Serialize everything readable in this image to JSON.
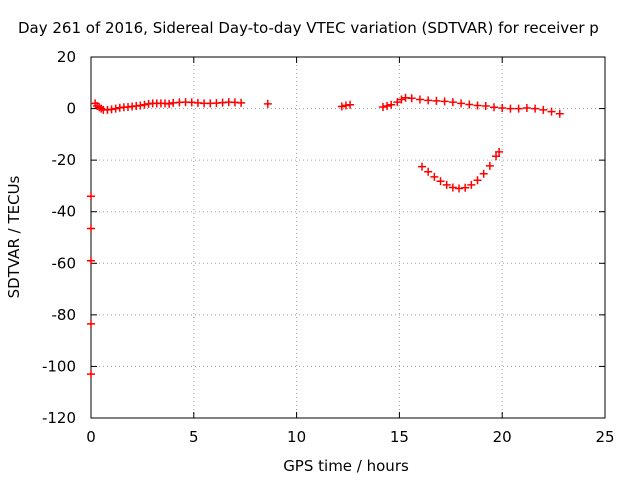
{
  "chart_data": {
    "type": "scatter",
    "title": "Day 261 of 2016, Sidereal Day-to-day VTEC variation (SDTVAR) for receiver p",
    "xlabel": "GPS time / hours",
    "ylabel": "SDTVAR / TECUs",
    "xlim": [
      0,
      25
    ],
    "ylim": [
      -120,
      20
    ],
    "xticks": [
      "0",
      "5",
      "10",
      "15",
      "20",
      "25"
    ],
    "yticks": [
      "20",
      "0",
      "-20",
      "-40",
      "-60",
      "-80",
      "-100",
      "-120"
    ],
    "grid": true,
    "marker": "plus",
    "colors": {
      "series": "#ff0000",
      "frame": "#000000",
      "grid": "#a0a0a0"
    },
    "series": [
      {
        "points": [
          [
            0.2,
            2
          ],
          [
            0.3,
            1
          ],
          [
            0.4,
            0.5
          ],
          [
            0.5,
            0
          ],
          [
            0.6,
            -0.5
          ],
          [
            0.8,
            -0.5
          ],
          [
            1.0,
            -0.3
          ],
          [
            1.2,
            0
          ],
          [
            1.4,
            0.3
          ],
          [
            1.6,
            0.5
          ],
          [
            1.8,
            0.6
          ],
          [
            2.0,
            0.8
          ],
          [
            2.2,
            1
          ],
          [
            2.4,
            1.2
          ],
          [
            2.6,
            1.5
          ],
          [
            2.8,
            1.8
          ],
          [
            3.0,
            2
          ],
          [
            3.2,
            2
          ],
          [
            3.4,
            2
          ],
          [
            3.6,
            2
          ],
          [
            3.8,
            1.8
          ],
          [
            4.0,
            2.2
          ],
          [
            4.3,
            2.4
          ],
          [
            4.6,
            2.5
          ],
          [
            4.9,
            2.4
          ],
          [
            5.2,
            2.2
          ],
          [
            5.5,
            2
          ],
          [
            5.8,
            2
          ],
          [
            6.1,
            2.1
          ],
          [
            6.4,
            2.3
          ],
          [
            6.7,
            2.5
          ],
          [
            7.0,
            2.4
          ],
          [
            7.3,
            2.2
          ],
          [
            8.6,
            1.8
          ],
          [
            12.2,
            0.8
          ],
          [
            12.4,
            1.2
          ],
          [
            12.6,
            1.5
          ],
          [
            14.2,
            0.6
          ],
          [
            14.4,
            1
          ],
          [
            14.6,
            1.5
          ],
          [
            14.9,
            2.5
          ],
          [
            15.1,
            3.5
          ],
          [
            15.3,
            4.2
          ],
          [
            15.6,
            4
          ],
          [
            16.0,
            3.5
          ],
          [
            16.4,
            3.2
          ],
          [
            16.8,
            3
          ],
          [
            17.2,
            2.8
          ],
          [
            17.6,
            2.5
          ],
          [
            18.0,
            2
          ],
          [
            18.4,
            1.6
          ],
          [
            18.8,
            1.2
          ],
          [
            19.2,
            1
          ],
          [
            19.6,
            0.5
          ],
          [
            20.0,
            0.2
          ],
          [
            20.4,
            0
          ],
          [
            20.8,
            0
          ],
          [
            21.2,
            0.2
          ],
          [
            21.6,
            0
          ],
          [
            22.0,
            -0.5
          ],
          [
            22.4,
            -1.2
          ],
          [
            22.8,
            -2
          ],
          [
            16.1,
            -22.5
          ],
          [
            16.4,
            -24.5
          ],
          [
            16.7,
            -26.5
          ],
          [
            17.0,
            -28.2
          ],
          [
            17.3,
            -29.6
          ],
          [
            17.6,
            -30.6
          ],
          [
            17.9,
            -31
          ],
          [
            18.2,
            -30.7
          ],
          [
            18.5,
            -29.6
          ],
          [
            18.8,
            -27.8
          ],
          [
            19.1,
            -25.3
          ],
          [
            19.4,
            -22.2
          ],
          [
            19.7,
            -18.5
          ],
          [
            19.85,
            -16.8
          ],
          [
            0.0,
            -34
          ],
          [
            0.0,
            -46.5
          ],
          [
            0.0,
            -59
          ],
          [
            0.0,
            -83.5
          ],
          [
            0.0,
            -103
          ]
        ]
      }
    ]
  }
}
